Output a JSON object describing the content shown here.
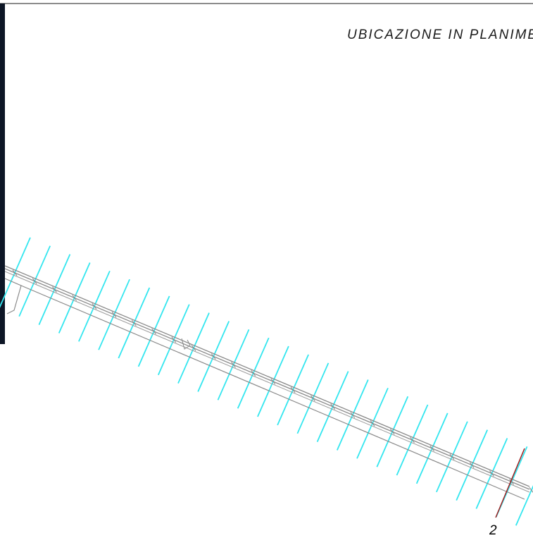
{
  "drawing": {
    "title": "UBICAZIONE IN PLANIMETR",
    "section_marker": "2"
  },
  "colors": {
    "hatch": "#33e6ef",
    "road": "#8a8a8a",
    "section_line": "#a01c1c",
    "frame": "#1a1a1a",
    "left_panel": "#0d1626"
  }
}
